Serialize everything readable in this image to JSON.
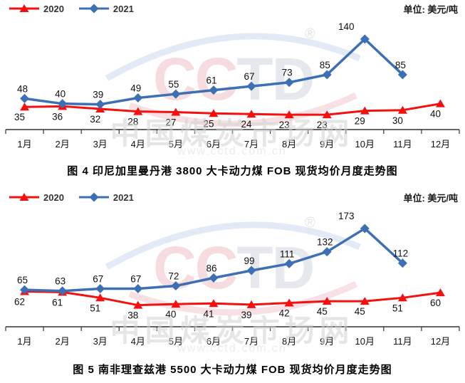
{
  "watermark": {
    "logo": "CCTD",
    "registered": "®",
    "site": "中国煤炭市场网",
    "url": "www.cctd.com.cn"
  },
  "chart_data": [
    {
      "type": "line",
      "title": "图 4  印尼加里曼丹港 3800 大卡动力煤 FOB 现货均价月度走势图",
      "unit": "单位: 美元/吨",
      "categories": [
        "1月",
        "2月",
        "3月",
        "4月",
        "5月",
        "6月",
        "7月",
        "8月",
        "9月",
        "10月",
        "11月",
        "12月"
      ],
      "series": [
        {
          "name": "2020",
          "color": "#f50f0f",
          "marker": "triangle",
          "values": [
            35,
            36,
            32,
            28,
            27,
            25,
            24,
            23,
            23,
            29,
            30,
            40
          ]
        },
        {
          "name": "2021",
          "color": "#3d6fb5",
          "marker": "diamond",
          "values": [
            48,
            40,
            39,
            49,
            55,
            61,
            67,
            73,
            85,
            140,
            85,
            null
          ]
        }
      ],
      "ylim": [
        0,
        152
      ],
      "xlabel": "",
      "ylabel": "",
      "grid": false,
      "legend_position": "top-left"
    },
    {
      "type": "line",
      "title": "图 5  南非理查兹港 5500 大卡动力煤 FOB 现货均价月度走势图",
      "unit": "单位: 美元/吨",
      "categories": [
        "1月",
        "2月",
        "3月",
        "4月",
        "5月",
        "6月",
        "7月",
        "8月",
        "9月",
        "10月",
        "11月",
        "12月"
      ],
      "series": [
        {
          "name": "2020",
          "color": "#f50f0f",
          "marker": "triangle",
          "values": [
            62,
            61,
            51,
            38,
            40,
            41,
            39,
            42,
            45,
            45,
            51,
            60
          ]
        },
        {
          "name": "2021",
          "color": "#3d6fb5",
          "marker": "diamond",
          "values": [
            65,
            63,
            67,
            67,
            72,
            86,
            99,
            111,
            132,
            173,
            112,
            null
          ]
        }
      ],
      "ylim": [
        0,
        188
      ],
      "xlabel": "",
      "ylabel": "",
      "grid": false,
      "legend_position": "top-left"
    }
  ]
}
